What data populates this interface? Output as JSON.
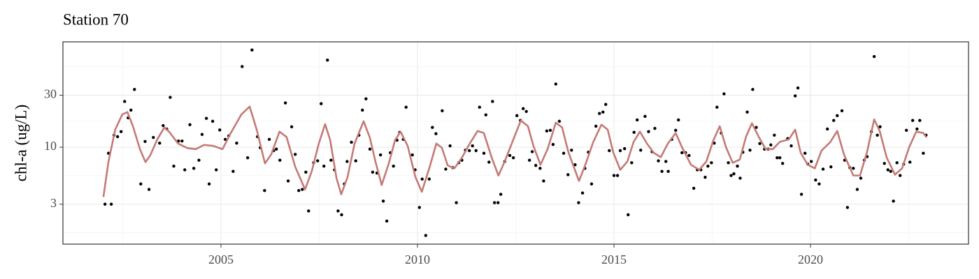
{
  "chart_data": {
    "type": "scatter",
    "title": "Station 70",
    "ylabel": "chl-a (ug/L)",
    "xlim": [
      2000.98,
      2024.02
    ],
    "xticks": [
      2005,
      2010,
      2015,
      2020
    ],
    "ylim": [
      1.29,
      92.7
    ],
    "yticks": [
      3,
      10,
      30
    ],
    "ylog": true,
    "grid": true,
    "series": [
      {
        "type": "scatter",
        "color": "#000000",
        "x": [
          2002.05,
          2002.21,
          2002.14,
          2002.28,
          2002.37,
          2002.46,
          2002.55,
          2002.64,
          2002.71,
          2002.8,
          2002.96,
          2003.07,
          2003.17,
          2003.28,
          2003.44,
          2003.53,
          2003.62,
          2003.71,
          2003.8,
          2003.92,
          2004.01,
          2004.08,
          2004.21,
          2004.31,
          2004.44,
          2004.52,
          2004.63,
          2004.7,
          2004.79,
          2004.88,
          2004.97,
          2005.11,
          2005.2,
          2005.31,
          2005.4,
          2005.54,
          2005.68,
          2005.79,
          2005.93,
          2006.0,
          2006.11,
          2006.23,
          2006.34,
          2006.41,
          2006.5,
          2006.64,
          2006.71,
          2006.8,
          2006.89,
          2006.98,
          2007.07,
          2007.16,
          2007.23,
          2007.36,
          2007.46,
          2007.55,
          2007.62,
          2007.71,
          2007.8,
          2007.89,
          2007.98,
          2008.07,
          2008.14,
          2008.21,
          2008.32,
          2008.43,
          2008.51,
          2008.6,
          2008.69,
          2008.79,
          2008.86,
          2008.97,
          2009.06,
          2009.13,
          2009.22,
          2009.31,
          2009.39,
          2009.48,
          2009.55,
          2009.64,
          2009.71,
          2009.87,
          2009.94,
          2010.05,
          2010.12,
          2010.21,
          2010.3,
          2010.38,
          2010.47,
          2010.63,
          2010.72,
          2010.83,
          2010.9,
          2010.99,
          2011.05,
          2011.13,
          2011.22,
          2011.32,
          2011.4,
          2011.49,
          2011.58,
          2011.69,
          2011.74,
          2011.82,
          2011.91,
          2011.96,
          2012.05,
          2012.12,
          2012.22,
          2012.35,
          2012.44,
          2012.53,
          2012.62,
          2012.69,
          2012.77,
          2012.85,
          2012.92,
          2013.01,
          2013.12,
          2013.21,
          2013.29,
          2013.38,
          2013.45,
          2013.52,
          2013.61,
          2013.72,
          2013.83,
          2013.92,
          2014.01,
          2014.1,
          2014.2,
          2014.26,
          2014.35,
          2014.43,
          2014.54,
          2014.63,
          2014.72,
          2014.79,
          2014.88,
          2015.0,
          2015.09,
          2015.16,
          2015.27,
          2015.36,
          2015.45,
          2015.51,
          2015.59,
          2015.68,
          2015.79,
          2015.88,
          2015.97,
          2016.04,
          2016.13,
          2016.22,
          2016.32,
          2016.38,
          2016.47,
          2016.57,
          2016.64,
          2016.73,
          2016.82,
          2016.91,
          2017.03,
          2017.12,
          2017.21,
          2017.32,
          2017.39,
          2017.48,
          2017.55,
          2017.62,
          2017.73,
          2017.8,
          2017.91,
          2017.98,
          2018.05,
          2018.14,
          2018.21,
          2018.28,
          2018.39,
          2018.46,
          2018.53,
          2018.62,
          2018.71,
          2018.83,
          2018.92,
          2018.99,
          2019.08,
          2019.15,
          2019.22,
          2019.29,
          2019.42,
          2019.51,
          2019.61,
          2019.68,
          2019.77,
          2019.86,
          2019.93,
          2020.02,
          2020.13,
          2020.22,
          2020.32,
          2020.43,
          2020.52,
          2020.59,
          2020.68,
          2020.8,
          2020.87,
          2020.94,
          2021.0,
          2021.09,
          2021.19,
          2021.28,
          2021.37,
          2021.44,
          2021.55,
          2021.62,
          2021.7,
          2021.77,
          2021.88,
          2021.97,
          2022.04,
          2022.11,
          2022.2,
          2022.28,
          2022.37,
          2022.44,
          2022.53,
          2022.6,
          2022.71,
          2022.78,
          2022.87,
          2022.94
        ],
        "values": [
          3.0,
          3.0,
          8.8,
          12.9,
          12.5,
          13.9,
          26.3,
          18.6,
          21.9,
          33.9,
          4.6,
          11.3,
          4.1,
          12.3,
          10.9,
          15.8,
          14.7,
          28.7,
          6.7,
          11.4,
          11.4,
          6.2,
          16.1,
          6.4,
          7.6,
          13.1,
          18.4,
          4.6,
          17.3,
          6.2,
          14.4,
          11.8,
          12.7,
          6.0,
          10.9,
          55,
          8.0,
          78,
          12.5,
          9.9,
          4.0,
          11.8,
          9.3,
          9.6,
          7.6,
          25.5,
          4.9,
          15.4,
          8.6,
          4.0,
          4.1,
          5.9,
          2.6,
          7.2,
          7.5,
          25.1,
          6.7,
          63,
          7.6,
          6.2,
          2.6,
          2.4,
          4.6,
          7.4,
          11.1,
          7.5,
          12.9,
          21.9,
          27.8,
          9.6,
          5.9,
          5.8,
          8.5,
          3.2,
          2.1,
          8.9,
          6.7,
          11.6,
          13.7,
          11.8,
          23.3,
          8.5,
          6.2,
          2.8,
          5.1,
          1.55,
          5.1,
          15.2,
          13.3,
          21.6,
          6.3,
          10.3,
          6.5,
          3.1,
          7.2,
          7.6,
          9.4,
          9.3,
          10.3,
          9.3,
          23.3,
          8.8,
          19.8,
          7.3,
          26.3,
          3.1,
          3.1,
          3.7,
          7.4,
          8.4,
          8.0,
          19.5,
          17.6,
          22.6,
          21.3,
          7.6,
          9.1,
          6.8,
          6.4,
          4.9,
          14.1,
          14.3,
          10.6,
          38,
          17.3,
          8.8,
          5.6,
          9.4,
          6.9,
          3.1,
          3.8,
          6.4,
          9.0,
          4.6,
          15.6,
          20.4,
          21.0,
          24.7,
          9.3,
          5.5,
          5.5,
          9.3,
          9.7,
          2.4,
          7.2,
          13.7,
          17.8,
          9.4,
          19.2,
          13.9,
          9.1,
          14.9,
          7.5,
          6.0,
          7.4,
          6.0,
          11.8,
          14.3,
          17.8,
          8.9,
          8.9,
          8.4,
          4.2,
          6.2,
          6.2,
          5.3,
          6.7,
          7.2,
          10.9,
          23.3,
          13.5,
          30.9,
          7.2,
          5.5,
          5.7,
          6.7,
          5.2,
          9.0,
          21.0,
          9.4,
          33.9,
          15.2,
          10.8,
          9.6,
          9.6,
          10.5,
          12.9,
          8.0,
          8.0,
          7.1,
          12.0,
          10.3,
          29.6,
          35,
          3.7,
          8.8,
          7.0,
          7.4,
          5.0,
          4.6,
          6.3,
          14.7,
          6.6,
          17.6,
          19.5,
          21.6,
          7.6,
          2.8,
          6.5,
          6.4,
          4.1,
          5.2,
          7.6,
          8.2,
          13.9,
          68,
          12.9,
          15.4,
          7.1,
          6.2,
          6.0,
          3.2,
          7.2,
          5.5,
          7.0,
          14.3,
          7.3,
          17.6,
          14.7,
          17.6,
          8.8,
          12.9
        ]
      },
      {
        "type": "line",
        "color": "#c47a76",
        "x": [
          2002.01,
          2002.14,
          2002.31,
          2002.49,
          2002.62,
          2002.76,
          2002.94,
          2003.08,
          2003.2,
          2003.38,
          2003.56,
          2003.68,
          2003.91,
          2004.15,
          2004.36,
          2004.57,
          2004.8,
          2005.04,
          2005.25,
          2005.52,
          2005.73,
          2005.91,
          2006.12,
          2006.28,
          2006.49,
          2006.67,
          2006.89,
          2007.14,
          2007.31,
          2007.49,
          2007.65,
          2007.78,
          2007.94,
          2008.06,
          2008.22,
          2008.4,
          2008.63,
          2008.79,
          2008.93,
          2009.09,
          2009.27,
          2009.43,
          2009.57,
          2009.75,
          2009.95,
          2010.11,
          2010.3,
          2010.48,
          2010.62,
          2010.77,
          2010.94,
          2011.12,
          2011.33,
          2011.53,
          2011.69,
          2011.89,
          2012.06,
          2012.22,
          2012.44,
          2012.63,
          2012.81,
          2012.95,
          2013.13,
          2013.31,
          2013.52,
          2013.68,
          2013.84,
          2014.11,
          2014.29,
          2014.47,
          2014.68,
          2014.84,
          2014.98,
          2015.16,
          2015.34,
          2015.5,
          2015.66,
          2015.84,
          2016.01,
          2016.19,
          2016.37,
          2016.57,
          2016.73,
          2016.96,
          2017.17,
          2017.35,
          2017.53,
          2017.69,
          2017.85,
          2018.02,
          2018.2,
          2018.36,
          2018.51,
          2018.68,
          2018.86,
          2019.04,
          2019.22,
          2019.45,
          2019.61,
          2019.75,
          2019.93,
          2020.11,
          2020.28,
          2020.5,
          2020.68,
          2020.85,
          2021.09,
          2021.26,
          2021.44,
          2021.62,
          2021.76,
          2021.94,
          2022.15,
          2022.33,
          2022.51,
          2022.69,
          2022.87,
          2022.95
        ],
        "values": [
          3.5,
          7.4,
          14.5,
          20,
          21,
          15.6,
          9.6,
          7.3,
          8.4,
          11.8,
          15.2,
          13.9,
          10.8,
          9.8,
          9.6,
          10.5,
          10.3,
          9.6,
          13.5,
          20,
          23.6,
          14.5,
          7.1,
          8.6,
          13.9,
          12.4,
          6.6,
          4.1,
          6.0,
          10.8,
          16.3,
          11.6,
          5.2,
          3.7,
          5.3,
          10.8,
          17.3,
          12.2,
          7.4,
          4.5,
          7.1,
          11.6,
          13.9,
          10.3,
          5.3,
          3.9,
          6.4,
          10.8,
          9.9,
          6.8,
          6.4,
          7.9,
          10.8,
          14.1,
          13.5,
          8.0,
          5.5,
          7.4,
          11.8,
          17.6,
          15.6,
          10.3,
          6.9,
          9.6,
          16.8,
          15.2,
          9.0,
          4.9,
          7.2,
          11.1,
          16.1,
          14.5,
          9.0,
          6.2,
          7.4,
          11.2,
          13.9,
          10.8,
          8.9,
          8.1,
          10.8,
          13.5,
          10.0,
          6.9,
          6.2,
          7.4,
          11.6,
          15.6,
          10.0,
          7.2,
          7.7,
          12.5,
          16.6,
          12.5,
          9.6,
          9.6,
          11.2,
          11.8,
          14.5,
          8.9,
          6.9,
          6.4,
          9.3,
          11.1,
          14.1,
          8.6,
          5.5,
          5.5,
          9.1,
          18.0,
          14.1,
          8.0,
          5.6,
          6.4,
          10.0,
          13.9,
          13.5,
          12.3
        ]
      }
    ]
  }
}
